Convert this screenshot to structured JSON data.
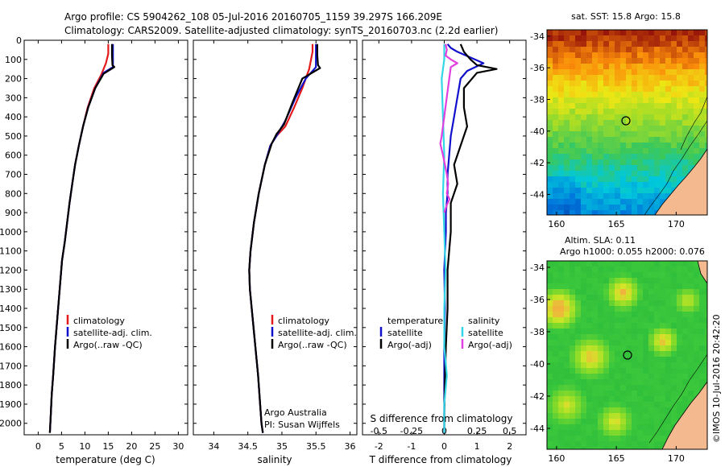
{
  "header": {
    "line1": "Argo profile: CS 5904262_108 05-Jul-2016 20160705_1159 39.297S 166.209E",
    "line2": "Climatology: CARS2009. Satellite-adjusted climatology: synTS_20160703.nc (2.2d earlier)"
  },
  "credits": {
    "org": "Argo Australia",
    "pi": "PI: Susan Wijffels",
    "imos": "©IMOS 10-Jul-2016 20:42:20"
  },
  "colors": {
    "climatology": "#e31a1c",
    "satellite": "#1010cc",
    "argo": "#000000",
    "salinity_satellite": "#33d6e6",
    "salinity_argo": "#e040e0",
    "land": "#f4b98f"
  },
  "chart_data": [
    {
      "id": "temperature",
      "type": "line",
      "xlabel": "temperature (deg C)",
      "ylabel": "",
      "xlim": [
        -3,
        32
      ],
      "ylim": [
        2060,
        0
      ],
      "xticks": [
        "0",
        "5",
        "10",
        "15",
        "20",
        "25",
        "30"
      ],
      "xtick_values": [
        0,
        5,
        10,
        15,
        20,
        25,
        30
      ],
      "yticks": [
        "0",
        "100",
        "200",
        "300",
        "400",
        "500",
        "600",
        "700",
        "800",
        "900",
        "1000",
        "1100",
        "1200",
        "1300",
        "1400",
        "1500",
        "1600",
        "1700",
        "1800",
        "1900",
        "2000"
      ],
      "ytick_values": [
        0,
        100,
        200,
        300,
        400,
        500,
        600,
        700,
        800,
        900,
        1000,
        1100,
        1200,
        1300,
        1400,
        1500,
        1600,
        1700,
        1800,
        1900,
        2000
      ],
      "legend": [
        "climatology",
        "satellite-adj. clim.",
        "Argo(..raw -QC)"
      ],
      "series": [
        {
          "name": "climatology",
          "color_key": "climatology",
          "x": [
            15.0,
            15.0,
            14.5,
            13.5,
            12.0,
            10.6,
            9.6,
            8.7,
            7.9,
            7.3,
            6.7,
            6.2,
            5.7,
            5.1,
            4.6,
            4.1,
            3.6,
            3.2,
            2.9,
            2.7,
            2.6,
            2.5
          ],
          "y": [
            20,
            70,
            120,
            180,
            250,
            350,
            450,
            550,
            650,
            750,
            850,
            950,
            1050,
            1150,
            1300,
            1450,
            1600,
            1750,
            1850,
            1950,
            2000,
            2050
          ]
        },
        {
          "name": "satellite-adj. clim.",
          "color_key": "satellite",
          "x": [
            16.0,
            16.0,
            16.0,
            14.0,
            12.2,
            10.7,
            9.6,
            8.7,
            7.9,
            7.3,
            6.7,
            6.2,
            5.7,
            5.1,
            4.6,
            4.1,
            3.6,
            3.2,
            2.9,
            2.7,
            2.6,
            2.5
          ],
          "y": [
            20,
            80,
            140,
            170,
            250,
            350,
            450,
            550,
            650,
            750,
            850,
            950,
            1050,
            1150,
            1300,
            1450,
            1600,
            1750,
            1850,
            1950,
            2000,
            2050
          ]
        },
        {
          "name": "Argo(..raw -QC)",
          "color_key": "argo",
          "x": [
            15.8,
            15.8,
            15.9,
            16.3,
            14.0,
            12.2,
            10.7,
            9.6,
            8.7,
            7.9,
            7.3,
            6.7,
            6.2,
            5.7,
            5.1,
            4.6,
            4.1,
            3.6,
            3.2,
            2.9,
            2.7,
            2.6,
            2.5
          ],
          "y": [
            20,
            80,
            130,
            140,
            175,
            250,
            350,
            450,
            550,
            650,
            750,
            850,
            950,
            1050,
            1150,
            1300,
            1450,
            1600,
            1750,
            1850,
            1950,
            2000,
            2050
          ]
        }
      ]
    },
    {
      "id": "salinity",
      "type": "line",
      "xlabel": "salinity",
      "ylabel": "",
      "xlim": [
        33.7,
        36.1
      ],
      "ylim": [
        2060,
        0
      ],
      "xticks": [
        "34",
        "34.5",
        "35",
        "35.5",
        "36"
      ],
      "xtick_values": [
        34,
        34.5,
        35,
        35.5,
        36
      ],
      "legend": [
        "climatology",
        "satellite-adj. clim.",
        "Argo(..raw -QC)"
      ],
      "series": [
        {
          "name": "climatology",
          "color_key": "climatology",
          "x": [
            35.45,
            35.45,
            35.4,
            35.3,
            35.18,
            35.05,
            34.92,
            34.83,
            34.75,
            34.66,
            34.59,
            34.54,
            34.52,
            34.53,
            34.57,
            34.61,
            34.65,
            34.68,
            34.7,
            34.72
          ],
          "y": [
            20,
            60,
            150,
            250,
            350,
            450,
            500,
            550,
            650,
            800,
            950,
            1100,
            1200,
            1300,
            1450,
            1600,
            1750,
            1900,
            2000,
            2050
          ]
        },
        {
          "name": "satellite-adj. clim.",
          "color_key": "satellite",
          "x": [
            35.5,
            35.5,
            35.5,
            35.35,
            35.2,
            35.05,
            34.92,
            34.83,
            34.75,
            34.66,
            34.59,
            34.54,
            34.52,
            34.53,
            34.57,
            34.61,
            34.65,
            34.68,
            34.7,
            34.72
          ],
          "y": [
            20,
            80,
            140,
            200,
            300,
            420,
            500,
            550,
            650,
            800,
            950,
            1100,
            1200,
            1300,
            1450,
            1600,
            1750,
            1900,
            2000,
            2050
          ]
        },
        {
          "name": "Argo(..raw -QC)",
          "color_key": "argo",
          "x": [
            35.52,
            35.52,
            35.53,
            35.56,
            35.3,
            35.15,
            35.03,
            34.92,
            34.85,
            34.75,
            34.66,
            34.59,
            34.54,
            34.52,
            34.53,
            34.57,
            34.61,
            34.65,
            34.68,
            34.7,
            34.72
          ],
          "y": [
            20,
            80,
            130,
            145,
            200,
            330,
            440,
            490,
            540,
            650,
            800,
            950,
            1100,
            1200,
            1300,
            1450,
            1600,
            1750,
            1900,
            2000,
            2050
          ]
        }
      ]
    },
    {
      "id": "differences",
      "type": "line",
      "xlabel": "T difference from climatology",
      "x2label": "S difference from climatology",
      "xlim": [
        -2.5,
        2.5
      ],
      "ylim": [
        2060,
        0
      ],
      "xticks": [
        "-2",
        "-1",
        "0",
        "1",
        "2"
      ],
      "xtick_values": [
        -2,
        -1,
        0,
        1,
        2
      ],
      "x2ticks": [
        "-0.5",
        "-0.25",
        "0",
        "0.25",
        "0.5"
      ],
      "x2tick_values": [
        -0.5,
        -0.25,
        0,
        0.25,
        0.5
      ],
      "legend_temperature_title": "temperature",
      "legend_salinity_title": "salinity",
      "legend_temperature": [
        "satellite",
        "Argo(-adj)"
      ],
      "legend_salinity": [
        "satellite",
        "Argo(-adj)"
      ],
      "series": [
        {
          "name": "T satellite",
          "color_key": "satellite",
          "x": [
            0.1,
            0.2,
            0.4,
            1.2,
            0.7,
            0.5,
            0.4,
            0.3,
            0.2,
            0.15,
            0.1,
            0.1,
            0.05,
            0.05,
            0.0,
            0.02,
            0.0,
            0.0,
            0.0,
            0.0
          ],
          "y": [
            20,
            40,
            60,
            120,
            160,
            200,
            300,
            400,
            500,
            600,
            700,
            800,
            900,
            1000,
            1200,
            1400,
            1600,
            1800,
            1950,
            2050
          ]
        },
        {
          "name": "T Argo(-adj)",
          "color_key": "argo",
          "x": [
            0.5,
            0.6,
            0.8,
            1.0,
            1.6,
            1.0,
            0.6,
            0.6,
            0.7,
            0.5,
            0.3,
            0.4,
            0.2,
            0.2,
            0.1,
            0.1,
            0.05,
            0.02,
            0.0,
            0.0
          ],
          "y": [
            20,
            60,
            100,
            130,
            150,
            170,
            250,
            350,
            450,
            550,
            650,
            750,
            850,
            1000,
            1200,
            1400,
            1600,
            1800,
            1950,
            2050
          ]
        },
        {
          "name": "S satellite",
          "color_key": "salinity_satellite",
          "x": [
            0.0,
            0.0,
            -0.02,
            -0.01,
            0.0,
            -0.01,
            0.0,
            0.01,
            0.0,
            0.0,
            0.02,
            0.0,
            0.0,
            0.0
          ],
          "y": [
            20,
            100,
            200,
            400,
            600,
            800,
            1000,
            1200,
            1400,
            1600,
            1750,
            1900,
            2000,
            2050
          ]
        },
        {
          "name": "S Argo(-adj)",
          "color_key": "salinity_argo",
          "x": [
            0.01,
            0.02,
            0.01,
            0.05,
            0.1,
            0.05,
            -0.02,
            -0.03,
            -0.01,
            0.02,
            0.03,
            0.02,
            0.04,
            0.02,
            0.0
          ],
          "y": [
            20,
            50,
            80,
            100,
            120,
            140,
            500,
            540,
            600,
            700,
            750,
            800,
            830,
            860,
            900
          ]
        }
      ]
    },
    {
      "id": "sst-map",
      "type": "heatmap",
      "title": "sat. SST: 15.8 Argo: 15.8",
      "xticks": [
        "160",
        "165",
        "170"
      ],
      "xtick_values": [
        160,
        165,
        170
      ],
      "yticks": [
        "-34",
        "-36",
        "-38",
        "-40",
        "-42",
        "-44"
      ],
      "ytick_values": [
        -34,
        -36,
        -38,
        -40,
        -42,
        -44
      ],
      "xlim": [
        159.2,
        172.6
      ],
      "ylim": [
        -45.3,
        -33.6
      ],
      "marker": {
        "lon": 166.209,
        "lat": -39.297
      }
    },
    {
      "id": "sla-map",
      "type": "heatmap",
      "title_line1": "Altim. SLA: 0.11",
      "title_line2": "Argo h1000: 0.055 h2000: 0.076",
      "xticks": [
        "160",
        "165",
        "170"
      ],
      "xtick_values": [
        160,
        165,
        170
      ],
      "yticks": [
        "-34",
        "-36",
        "-38",
        "-40",
        "-42",
        "-44"
      ],
      "ytick_values": [
        -34,
        -36,
        -38,
        -40,
        -42,
        -44
      ],
      "xlim": [
        159.2,
        172.6
      ],
      "ylim": [
        -45.3,
        -33.6
      ],
      "marker": {
        "lon": 166.209,
        "lat": -39.297
      }
    }
  ]
}
